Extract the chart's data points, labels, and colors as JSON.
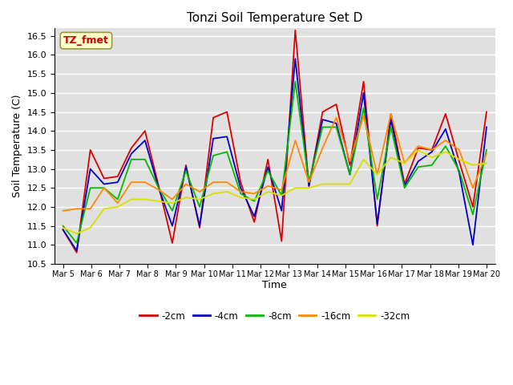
{
  "title": "Tonzi Soil Temperature Set D",
  "xlabel": "Time",
  "ylabel": "Soil Temperature (C)",
  "ylim": [
    10.5,
    16.7
  ],
  "yticks": [
    10.5,
    11.0,
    11.5,
    12.0,
    12.5,
    13.0,
    13.5,
    14.0,
    14.5,
    15.0,
    15.5,
    16.0,
    16.5
  ],
  "bg_color": "#e0e0e0",
  "legend_label": "TZ_fmet",
  "series_colors": {
    "-2cm": "#dd0000",
    "-4cm": "#0000cc",
    "-8cm": "#00bb00",
    "-16cm": "#ff8800",
    "-32cm": "#dddd00"
  },
  "x_labels": [
    "Mar 5",
    "Mar 6",
    "Mar 7",
    "Mar 8",
    "Mar 9",
    "Mar 10",
    "Mar 11",
    "Mar 12",
    "Mar 13",
    "Mar 14",
    "Mar 15",
    "Mar 16",
    "Mar 17",
    "Mar 18",
    "Mar 19",
    "Mar 20"
  ],
  "series": {
    "-2cm": [
      11.4,
      10.8,
      13.5,
      12.75,
      12.8,
      13.55,
      14.0,
      12.55,
      11.05,
      13.1,
      11.45,
      14.35,
      14.5,
      12.65,
      11.6,
      13.25,
      11.1,
      16.65,
      12.55,
      14.5,
      14.7,
      13.1,
      15.3,
      11.5,
      14.45,
      12.6,
      13.55,
      13.5,
      14.45,
      13.2,
      12.0,
      14.5
    ],
    "-4cm": [
      11.4,
      10.85,
      13.0,
      12.6,
      12.65,
      13.4,
      13.75,
      12.5,
      11.5,
      13.05,
      11.5,
      13.8,
      13.85,
      12.5,
      11.75,
      13.05,
      11.9,
      15.9,
      12.55,
      14.3,
      14.2,
      12.85,
      15.0,
      11.55,
      14.3,
      12.55,
      13.2,
      13.45,
      14.05,
      12.9,
      11.0,
      14.1
    ],
    "-8cm": [
      11.5,
      11.05,
      12.5,
      12.5,
      12.2,
      13.25,
      13.25,
      12.5,
      11.9,
      12.95,
      12.0,
      13.35,
      13.45,
      12.35,
      12.15,
      12.95,
      12.3,
      15.3,
      12.65,
      14.1,
      14.1,
      12.85,
      14.6,
      12.2,
      14.1,
      12.5,
      13.05,
      13.1,
      13.6,
      12.95,
      11.8,
      13.5
    ],
    "-16cm": [
      11.9,
      11.95,
      11.95,
      12.5,
      12.1,
      12.65,
      12.65,
      12.45,
      12.2,
      12.6,
      12.4,
      12.65,
      12.65,
      12.4,
      12.35,
      12.55,
      12.45,
      13.75,
      12.65,
      13.55,
      14.35,
      13.2,
      14.4,
      12.85,
      14.45,
      13.15,
      13.6,
      13.5,
      13.75,
      13.5,
      12.5,
      13.4
    ],
    "-32cm": [
      11.45,
      11.3,
      11.45,
      11.95,
      12.0,
      12.2,
      12.2,
      12.15,
      12.1,
      12.25,
      12.2,
      12.35,
      12.4,
      12.25,
      12.2,
      12.4,
      12.3,
      12.5,
      12.5,
      12.6,
      12.6,
      12.6,
      13.25,
      12.85,
      13.3,
      13.15,
      13.5,
      13.3,
      13.45,
      13.25,
      13.1,
      13.15
    ]
  },
  "n_points": 32
}
